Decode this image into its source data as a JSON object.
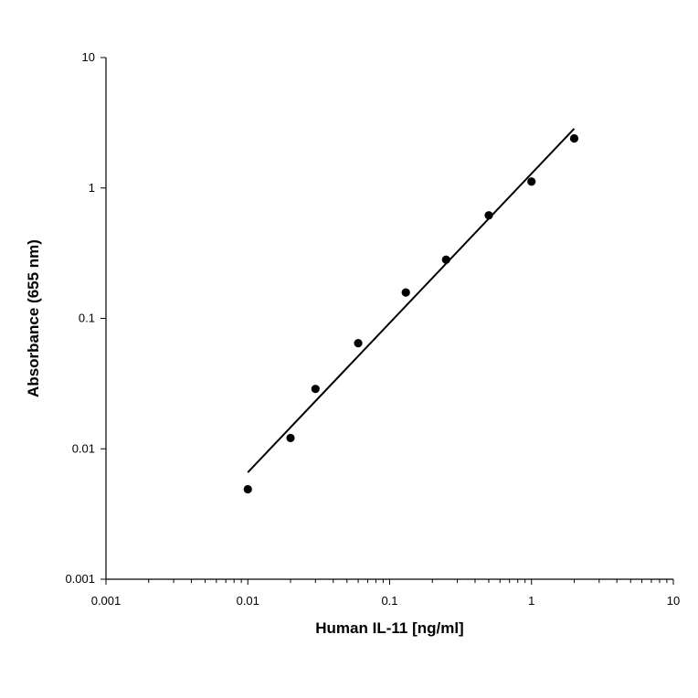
{
  "chart_data": {
    "type": "scatter",
    "xlabel": "Human IL-11 [ng/ml]",
    "ylabel": "Absorbance (655 nm)",
    "xscale": "log",
    "yscale": "log",
    "xlim": [
      0.001,
      10
    ],
    "ylim": [
      0.001,
      10
    ],
    "x_ticks": [
      0.001,
      0.01,
      0.1,
      1,
      10
    ],
    "x_tick_labels": [
      "0.001",
      "0.01",
      "0.1",
      "1",
      "10"
    ],
    "y_ticks": [
      0.001,
      0.01,
      0.1,
      1,
      10
    ],
    "y_tick_labels": [
      "0.001",
      "0.01",
      "0.1",
      "1",
      "10"
    ],
    "grid": false,
    "points": [
      {
        "x": 0.01,
        "y": 0.0049
      },
      {
        "x": 0.02,
        "y": 0.0121
      },
      {
        "x": 0.03,
        "y": 0.0288
      },
      {
        "x": 0.06,
        "y": 0.0646
      },
      {
        "x": 0.13,
        "y": 0.158
      },
      {
        "x": 0.25,
        "y": 0.282
      },
      {
        "x": 0.5,
        "y": 0.617
      },
      {
        "x": 1.0,
        "y": 1.12
      },
      {
        "x": 2.0,
        "y": 2.4
      }
    ],
    "trendline": {
      "type": "power",
      "points": [
        {
          "x": 0.01,
          "y": 0.0066
        },
        {
          "x": 2.0,
          "y": 2.85
        }
      ]
    },
    "colors": {
      "points": "#000000",
      "trendline": "#000000",
      "axes": "#000000"
    }
  }
}
